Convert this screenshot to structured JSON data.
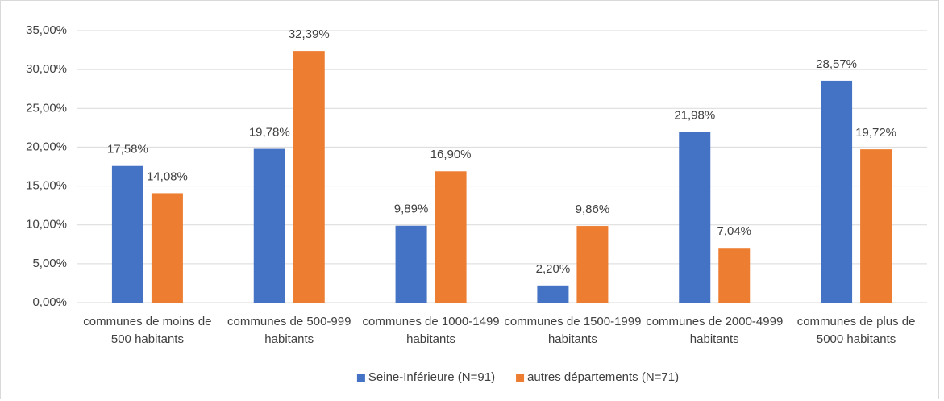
{
  "chart_data": {
    "type": "bar",
    "categories": [
      "communes de moins de 500 habitants",
      "communes de 500-999 habitants",
      "communes de 1000-1499 habitants",
      "communes de 1500-1999 habitants",
      "communes de 2000-4999 habitants",
      "communes de plus de 5000 habitants"
    ],
    "series": [
      {
        "name": "Seine-Inférieure (N=91)",
        "color": "#4472c4",
        "values": [
          17.58,
          19.78,
          9.89,
          2.2,
          21.98,
          28.57
        ],
        "value_labels": [
          "17,58%",
          "19,78%",
          "9,89%",
          "2,20%",
          "21,98%",
          "28,57%"
        ]
      },
      {
        "name": "autres départements (N=71)",
        "color": "#ed7d31",
        "values": [
          14.08,
          32.39,
          16.9,
          9.86,
          7.04,
          19.72
        ],
        "value_labels": [
          "14,08%",
          "32,39%",
          "16,90%",
          "9,86%",
          "7,04%",
          "19,72%"
        ]
      }
    ],
    "ylim": [
      0,
      35
    ],
    "yticks": [
      {
        "value": 0,
        "label": "0,00%"
      },
      {
        "value": 5,
        "label": "5,00%"
      },
      {
        "value": 10,
        "label": "10,00%"
      },
      {
        "value": 15,
        "label": "15,00%"
      },
      {
        "value": 20,
        "label": "20,00%"
      },
      {
        "value": 25,
        "label": "25,00%"
      },
      {
        "value": 30,
        "label": "30,00%"
      },
      {
        "value": 35,
        "label": "35,00%"
      }
    ],
    "grid": true,
    "legend": "bottom"
  }
}
